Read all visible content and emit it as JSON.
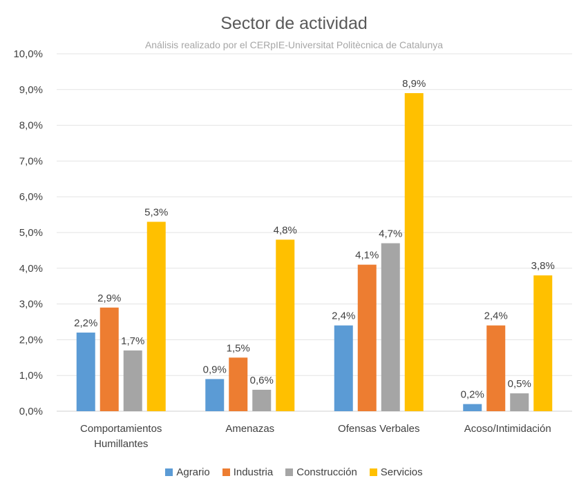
{
  "chart_data": {
    "type": "bar",
    "title": "Sector de actividad",
    "subtitle": "Análisis realizado por el CERpIE-Universitat Politècnica de Catalunya",
    "categories": [
      [
        "Comportamientos",
        "Humillantes"
      ],
      [
        "Amenazas"
      ],
      [
        "Ofensas Verbales"
      ],
      [
        "Acoso/Intimidación"
      ]
    ],
    "series": [
      {
        "name": "Agrario",
        "color": "#5b9bd5",
        "values": [
          2.2,
          0.9,
          2.4,
          0.2
        ],
        "labels": [
          "2,2%",
          "0,9%",
          "2,4%",
          "0,2%"
        ]
      },
      {
        "name": "Industria",
        "color": "#ed7d31",
        "values": [
          2.9,
          1.5,
          4.1,
          2.4
        ],
        "labels": [
          "2,9%",
          "1,5%",
          "4,1%",
          "2,4%"
        ]
      },
      {
        "name": "Construcción",
        "color": "#a5a5a5",
        "values": [
          1.7,
          0.6,
          4.7,
          0.5
        ],
        "labels": [
          "1,7%",
          "0,6%",
          "4,7%",
          "0,5%"
        ]
      },
      {
        "name": "Servicios",
        "color": "#ffc000",
        "values": [
          5.3,
          4.8,
          8.9,
          3.8
        ],
        "labels": [
          "5,3%",
          "4,8%",
          "8,9%",
          "3,8%"
        ]
      }
    ],
    "ylim": [
      0,
      10
    ],
    "yticks": [
      "0,0%",
      "1,0%",
      "2,0%",
      "3,0%",
      "4,0%",
      "5,0%",
      "6,0%",
      "7,0%",
      "8,0%",
      "9,0%",
      "10,0%"
    ],
    "grid": true,
    "legend_position": "bottom"
  }
}
